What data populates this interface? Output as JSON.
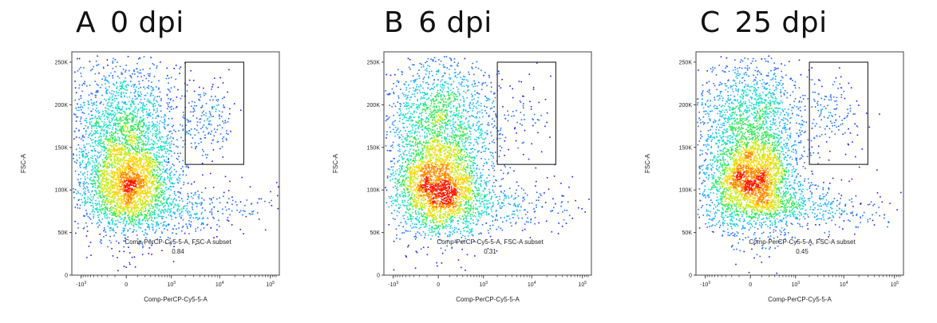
{
  "chart_data": [
    {
      "type": "scatter",
      "panel_letter": "A",
      "title": "0 dpi",
      "xlabel": "Comp-PerCP-Cy5-5-A",
      "ylabel": "FSC-A",
      "ylim": [
        0,
        262144
      ],
      "y_ticks": [
        {
          "v": 0,
          "label": "0"
        },
        {
          "v": 50000,
          "label": "50K"
        },
        {
          "v": 100000,
          "label": "100K"
        },
        {
          "v": 150000,
          "label": "150K"
        },
        {
          "v": 200000,
          "label": "200K"
        },
        {
          "v": 250000,
          "label": "250K"
        }
      ],
      "x_ticks": [
        {
          "v": -1000,
          "label": "-10",
          "exp": "3"
        },
        {
          "v": 0,
          "label": "0",
          "exp": ""
        },
        {
          "v": 1000,
          "label": "10",
          "exp": "3"
        },
        {
          "v": 10000,
          "label": "10",
          "exp": "4"
        },
        {
          "v": 100000,
          "label": "10",
          "exp": "5"
        }
      ],
      "gate": {
        "name": "Comp-PerCP-Cy5-5-A, FSC-A subset",
        "value": "0.84",
        "x_range": [
          2000,
          30000
        ],
        "y_range": [
          130000,
          250000
        ]
      },
      "populations": [
        {
          "x": 0,
          "y": 110000,
          "sx": 0.45,
          "sy": 28000,
          "n": 2200
        },
        {
          "x": 0,
          "y": 190000,
          "sx": 0.6,
          "sy": 35000,
          "n": 900
        },
        {
          "x": 0,
          "y": 150000,
          "sx": 0.5,
          "sy": 50000,
          "n": 900
        },
        {
          "x": 800,
          "y": 80000,
          "sx": 0.9,
          "sy": 15000,
          "n": 500
        },
        {
          "x": 6000,
          "y": 185000,
          "sx": 0.25,
          "sy": 22000,
          "n": 170
        }
      ]
    },
    {
      "type": "scatter",
      "panel_letter": "B",
      "title": "6 dpi",
      "xlabel": "Comp-PerCP-Cy5-5-A",
      "ylabel": "FSC-A",
      "ylim": [
        0,
        262144
      ],
      "y_ticks": [
        {
          "v": 0,
          "label": "0"
        },
        {
          "v": 50000,
          "label": "50K"
        },
        {
          "v": 100000,
          "label": "100K"
        },
        {
          "v": 150000,
          "label": "150K"
        },
        {
          "v": 200000,
          "label": "200K"
        },
        {
          "v": 250000,
          "label": "250K"
        }
      ],
      "x_ticks": [
        {
          "v": -1000,
          "label": "-10",
          "exp": "3"
        },
        {
          "v": 0,
          "label": "0",
          "exp": ""
        },
        {
          "v": 1000,
          "label": "10",
          "exp": "3"
        },
        {
          "v": 10000,
          "label": "10",
          "exp": "4"
        },
        {
          "v": 100000,
          "label": "10",
          "exp": "5"
        }
      ],
      "gate": {
        "name": "Comp-PerCP-Cy5-5-A, FSC-A subset",
        "value": "0.31",
        "x_range": [
          2000,
          30000
        ],
        "y_range": [
          130000,
          250000
        ]
      },
      "populations": [
        {
          "x": 0,
          "y": 105000,
          "sx": 0.45,
          "sy": 28000,
          "n": 2200
        },
        {
          "x": 0,
          "y": 190000,
          "sx": 0.6,
          "sy": 35000,
          "n": 900
        },
        {
          "x": 0,
          "y": 150000,
          "sx": 0.5,
          "sy": 50000,
          "n": 900
        },
        {
          "x": 800,
          "y": 80000,
          "sx": 0.9,
          "sy": 15000,
          "n": 400
        },
        {
          "x": 7000,
          "y": 185000,
          "sx": 0.35,
          "sy": 30000,
          "n": 80
        }
      ]
    },
    {
      "type": "scatter",
      "panel_letter": "C",
      "title": "25 dpi",
      "xlabel": "Comp-PerCP-Cy5-5-A",
      "ylabel": "FSC-A",
      "ylim": [
        0,
        262144
      ],
      "y_ticks": [
        {
          "v": 0,
          "label": "0"
        },
        {
          "v": 50000,
          "label": "50K"
        },
        {
          "v": 100000,
          "label": "100K"
        },
        {
          "v": 150000,
          "label": "150K"
        },
        {
          "v": 200000,
          "label": "200K"
        },
        {
          "v": 250000,
          "label": "250K"
        }
      ],
      "x_ticks": [
        {
          "v": -1000,
          "label": "-10",
          "exp": "3"
        },
        {
          "v": 0,
          "label": "0",
          "exp": ""
        },
        {
          "v": 1000,
          "label": "10",
          "exp": "3"
        },
        {
          "v": 10000,
          "label": "10",
          "exp": "4"
        },
        {
          "v": 100000,
          "label": "10",
          "exp": "5"
        }
      ],
      "gate": {
        "name": "Comp-PerCP-Cy5-5-A, FSC-A subset",
        "value": "0.45",
        "x_range": [
          2000,
          30000
        ],
        "y_range": [
          130000,
          250000
        ]
      },
      "populations": [
        {
          "x": 0,
          "y": 110000,
          "sx": 0.45,
          "sy": 28000,
          "n": 2200
        },
        {
          "x": 0,
          "y": 190000,
          "sx": 0.6,
          "sy": 35000,
          "n": 900
        },
        {
          "x": 0,
          "y": 150000,
          "sx": 0.5,
          "sy": 50000,
          "n": 900
        },
        {
          "x": 900,
          "y": 80000,
          "sx": 0.9,
          "sy": 15000,
          "n": 500
        },
        {
          "x": 6000,
          "y": 190000,
          "sx": 0.28,
          "sy": 25000,
          "n": 120
        }
      ]
    }
  ]
}
